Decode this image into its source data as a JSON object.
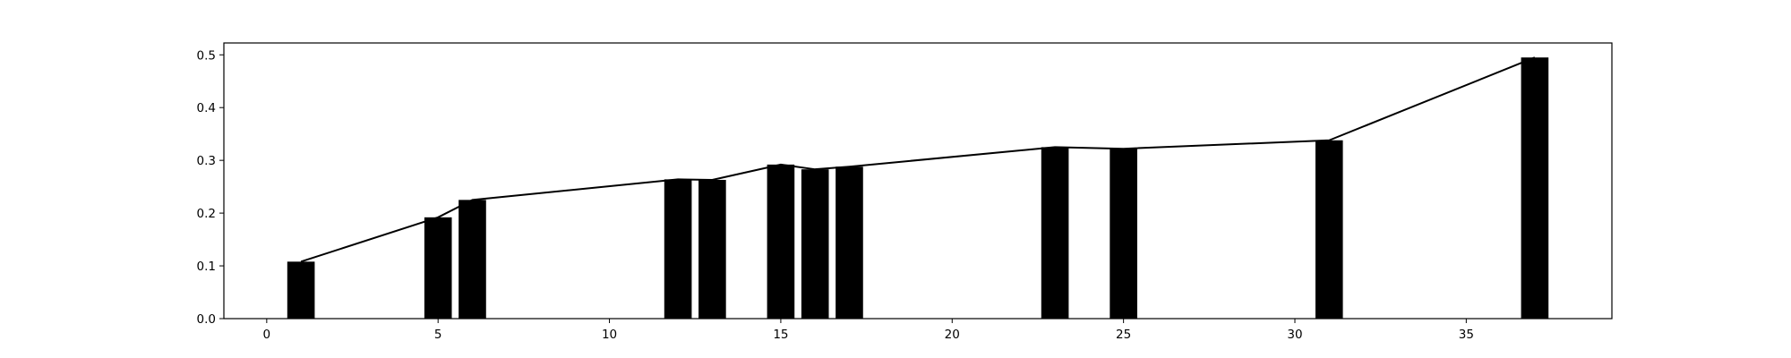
{
  "chart_data": {
    "type": "bar",
    "title": "",
    "xlabel": "",
    "ylabel": "",
    "xlim": [
      -1.25,
      39.25
    ],
    "ylim": [
      0,
      0.5225
    ],
    "grid": false,
    "legend": "none",
    "bar_width": 0.8,
    "colors": {
      "bar": "#000000",
      "line": "#000000",
      "axes": "#000000",
      "background": "#ffffff"
    },
    "x_ticks": [
      0,
      5,
      10,
      15,
      20,
      25,
      30,
      35
    ],
    "x_tick_labels": [
      "0",
      "5",
      "10",
      "15",
      "20",
      "25",
      "30",
      "35"
    ],
    "y_ticks": [
      0.0,
      0.1,
      0.2,
      0.3,
      0.4,
      0.5
    ],
    "y_tick_labels": [
      "0.0",
      "0.1",
      "0.2",
      "0.3",
      "0.4",
      "0.5"
    ],
    "x": [
      1,
      5,
      6,
      12,
      13,
      15,
      16,
      17,
      23,
      25,
      31,
      37
    ],
    "values": [
      0.108,
      0.192,
      0.225,
      0.264,
      0.263,
      0.292,
      0.283,
      0.288,
      0.325,
      0.322,
      0.338,
      0.495
    ],
    "series": [
      {
        "type": "bar",
        "values": [
          0.108,
          0.192,
          0.225,
          0.264,
          0.263,
          0.292,
          0.283,
          0.288,
          0.325,
          0.322,
          0.338,
          0.495
        ]
      },
      {
        "type": "line",
        "values": [
          0.108,
          0.192,
          0.225,
          0.264,
          0.263,
          0.292,
          0.283,
          0.288,
          0.325,
          0.322,
          0.338,
          0.495
        ]
      }
    ]
  }
}
